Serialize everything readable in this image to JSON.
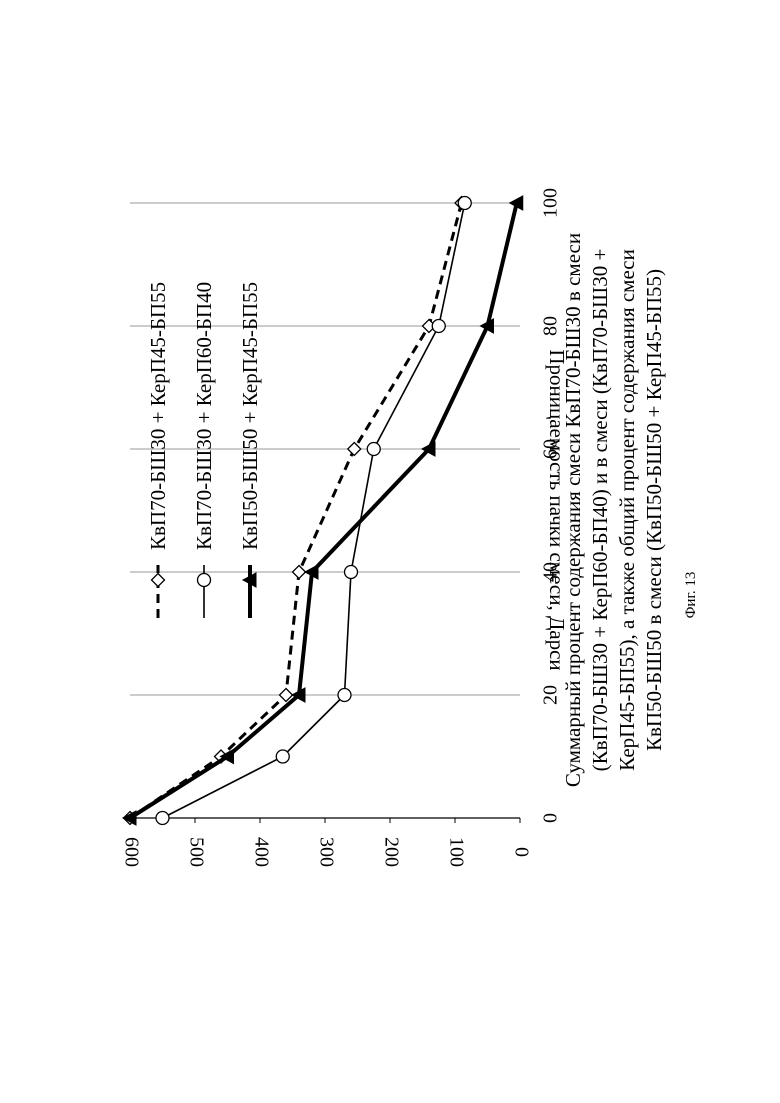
{
  "chart_data": {
    "type": "line",
    "orientation": "rotated-90-ccw",
    "xlabel_lines": [
      "Суммарный процент содержания смеси КвП70-БШ30 в смеси",
      "(КвП70-БШ30 + КерП60-БП40) и в смеси (КвП70-БШ30 +",
      "КерП45-БП55), а также общий процент содержания смеси",
      "КвП50-БШ50 в смеси (КвП50-БШ50 + КерП45-БП55)"
    ],
    "ylabel": "Проницаемость пачки смеси, Дарси",
    "xlim": [
      0,
      100
    ],
    "ylim": [
      0,
      600
    ],
    "xticks": [
      "0",
      "20",
      "40",
      "60",
      "80",
      "100"
    ],
    "yticks": [
      "0",
      "100",
      "200",
      "300",
      "400",
      "500",
      "600"
    ],
    "grid": "vertical",
    "legend_position": "top",
    "series": [
      {
        "name": "КвП70-БШ30 + КерП45-БП55",
        "style": "dashed",
        "marker": "diamond-open",
        "points": [
          [
            0,
            600
          ],
          [
            10,
            460
          ],
          [
            20,
            360
          ],
          [
            40,
            340
          ],
          [
            60,
            255
          ],
          [
            80,
            140
          ],
          [
            100,
            90
          ]
        ]
      },
      {
        "name": "КвП70-БШ30 + КерП60-БП40",
        "style": "thin",
        "marker": "circle-open",
        "points": [
          [
            0,
            550
          ],
          [
            10,
            365
          ],
          [
            20,
            270
          ],
          [
            40,
            260
          ],
          [
            60,
            225
          ],
          [
            80,
            125
          ],
          [
            100,
            85
          ]
        ]
      },
      {
        "name": "КвП50-БШ50 + КерП45-БП55",
        "style": "thick",
        "marker": "triangle-filled",
        "points": [
          [
            0,
            600
          ],
          [
            10,
            450
          ],
          [
            20,
            340
          ],
          [
            40,
            320
          ],
          [
            60,
            140
          ],
          [
            80,
            50
          ],
          [
            100,
            5
          ]
        ]
      }
    ]
  },
  "caption": "Фиг. 13"
}
